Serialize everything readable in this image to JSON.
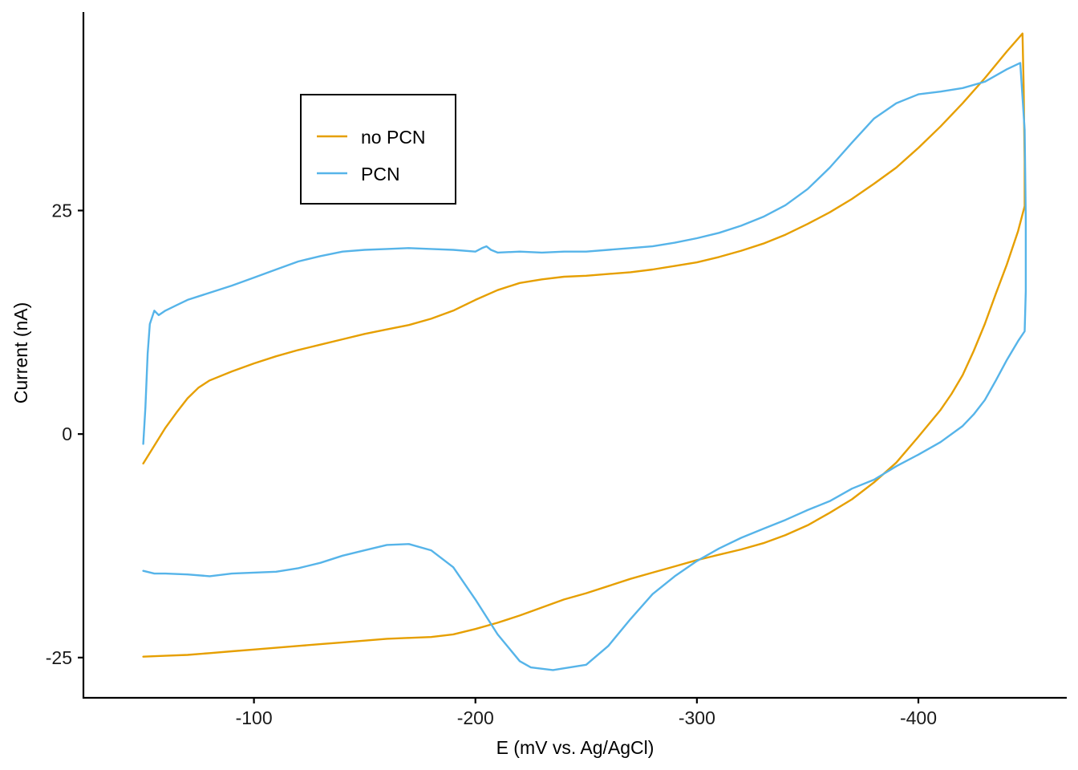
{
  "chart_data": {
    "type": "line",
    "title": "",
    "xlabel": "E (mV vs. Ag/AgCl)",
    "ylabel": "Current (nA)",
    "x_reversed": true,
    "xlim": [
      -23,
      -467
    ],
    "ylim": [
      -29.5,
      47.2
    ],
    "x_ticks": [
      -100,
      -200,
      -300,
      -400
    ],
    "y_ticks": [
      -25,
      0,
      25
    ],
    "grid": false,
    "legend_position": "top-left",
    "colors": {
      "no_pcn": "#E69F00",
      "pcn": "#56B4E9"
    },
    "series": [
      {
        "name": "no PCN",
        "color": "#E69F00",
        "points": [
          [
            -50,
            -3.3
          ],
          [
            -55,
            -1.3
          ],
          [
            -60,
            0.7
          ],
          [
            -65,
            2.4
          ],
          [
            -70,
            4.0
          ],
          [
            -75,
            5.2
          ],
          [
            -80,
            6.0
          ],
          [
            -90,
            7.0
          ],
          [
            -100,
            7.9
          ],
          [
            -110,
            8.7
          ],
          [
            -120,
            9.4
          ],
          [
            -130,
            10.0
          ],
          [
            -140,
            10.6
          ],
          [
            -150,
            11.2
          ],
          [
            -160,
            11.7
          ],
          [
            -170,
            12.2
          ],
          [
            -180,
            12.9
          ],
          [
            -190,
            13.8
          ],
          [
            -200,
            15.0
          ],
          [
            -210,
            16.1
          ],
          [
            -220,
            16.9
          ],
          [
            -230,
            17.3
          ],
          [
            -240,
            17.6
          ],
          [
            -250,
            17.7
          ],
          [
            -260,
            17.9
          ],
          [
            -270,
            18.1
          ],
          [
            -280,
            18.4
          ],
          [
            -290,
            18.8
          ],
          [
            -300,
            19.2
          ],
          [
            -310,
            19.8
          ],
          [
            -320,
            20.5
          ],
          [
            -330,
            21.3
          ],
          [
            -340,
            22.3
          ],
          [
            -350,
            23.5
          ],
          [
            -360,
            24.8
          ],
          [
            -370,
            26.3
          ],
          [
            -380,
            28.0
          ],
          [
            -390,
            29.8
          ],
          [
            -400,
            32.0
          ],
          [
            -410,
            34.4
          ],
          [
            -420,
            37.0
          ],
          [
            -430,
            39.8
          ],
          [
            -440,
            42.8
          ],
          [
            -447,
            44.8
          ],
          [
            -447.5,
            39.0
          ],
          [
            -448,
            30.5
          ],
          [
            -448,
            25.5
          ],
          [
            -445,
            22.7
          ],
          [
            -440,
            19.0
          ],
          [
            -435,
            15.7
          ],
          [
            -430,
            12.3
          ],
          [
            -425,
            9.3
          ],
          [
            -420,
            6.6
          ],
          [
            -415,
            4.5
          ],
          [
            -410,
            2.7
          ],
          [
            -400,
            -0.3
          ],
          [
            -390,
            -3.2
          ],
          [
            -380,
            -5.4
          ],
          [
            -370,
            -7.3
          ],
          [
            -360,
            -8.8
          ],
          [
            -350,
            -10.2
          ],
          [
            -340,
            -11.3
          ],
          [
            -330,
            -12.2
          ],
          [
            -320,
            -12.9
          ],
          [
            -310,
            -13.5
          ],
          [
            -300,
            -14.1
          ],
          [
            -290,
            -14.8
          ],
          [
            -280,
            -15.5
          ],
          [
            -270,
            -16.2
          ],
          [
            -260,
            -17.0
          ],
          [
            -250,
            -17.8
          ],
          [
            -240,
            -18.5
          ],
          [
            -230,
            -19.4
          ],
          [
            -220,
            -20.3
          ],
          [
            -210,
            -21.1
          ],
          [
            -200,
            -21.8
          ],
          [
            -190,
            -22.4
          ],
          [
            -180,
            -22.7
          ],
          [
            -170,
            -22.8
          ],
          [
            -160,
            -22.9
          ],
          [
            -150,
            -23.1
          ],
          [
            -140,
            -23.3
          ],
          [
            -130,
            -23.5
          ],
          [
            -120,
            -23.7
          ],
          [
            -110,
            -23.9
          ],
          [
            -100,
            -24.1
          ],
          [
            -90,
            -24.3
          ],
          [
            -80,
            -24.5
          ],
          [
            -70,
            -24.7
          ],
          [
            -60,
            -24.8
          ],
          [
            -50,
            -24.9
          ]
        ]
      },
      {
        "name": "PCN",
        "color": "#56B4E9",
        "points": [
          [
            -50,
            -1.1
          ],
          [
            -51,
            3.0
          ],
          [
            -52,
            9.0
          ],
          [
            -53,
            12.3
          ],
          [
            -55,
            13.8
          ],
          [
            -57,
            13.3
          ],
          [
            -60,
            13.8
          ],
          [
            -65,
            14.4
          ],
          [
            -70,
            15.0
          ],
          [
            -80,
            15.8
          ],
          [
            -90,
            16.6
          ],
          [
            -100,
            17.5
          ],
          [
            -110,
            18.4
          ],
          [
            -120,
            19.3
          ],
          [
            -130,
            19.9
          ],
          [
            -140,
            20.4
          ],
          [
            -150,
            20.6
          ],
          [
            -160,
            20.7
          ],
          [
            -170,
            20.8
          ],
          [
            -180,
            20.7
          ],
          [
            -190,
            20.6
          ],
          [
            -200,
            20.4
          ],
          [
            -203,
            20.8
          ],
          [
            -205,
            21.0
          ],
          [
            -207,
            20.6
          ],
          [
            -210,
            20.3
          ],
          [
            -220,
            20.4
          ],
          [
            -230,
            20.3
          ],
          [
            -240,
            20.4
          ],
          [
            -250,
            20.4
          ],
          [
            -260,
            20.6
          ],
          [
            -270,
            20.8
          ],
          [
            -280,
            21.0
          ],
          [
            -290,
            21.4
          ],
          [
            -300,
            21.9
          ],
          [
            -310,
            22.5
          ],
          [
            -320,
            23.3
          ],
          [
            -330,
            24.3
          ],
          [
            -340,
            25.6
          ],
          [
            -350,
            27.4
          ],
          [
            -360,
            29.8
          ],
          [
            -370,
            32.6
          ],
          [
            -380,
            35.3
          ],
          [
            -390,
            37.0
          ],
          [
            -400,
            38.0
          ],
          [
            -410,
            38.3
          ],
          [
            -420,
            38.7
          ],
          [
            -430,
            39.4
          ],
          [
            -440,
            40.8
          ],
          [
            -446,
            41.5
          ],
          [
            -448,
            34.0
          ],
          [
            -448.5,
            24.0
          ],
          [
            -448.5,
            16.0
          ],
          [
            -448,
            11.5
          ],
          [
            -445,
            10.4
          ],
          [
            -440,
            8.3
          ],
          [
            -435,
            6.0
          ],
          [
            -430,
            3.8
          ],
          [
            -425,
            2.2
          ],
          [
            -420,
            0.9
          ],
          [
            -410,
            -0.9
          ],
          [
            -400,
            -2.3
          ],
          [
            -390,
            -3.6
          ],
          [
            -380,
            -5.1
          ],
          [
            -370,
            -6.1
          ],
          [
            -360,
            -7.5
          ],
          [
            -350,
            -8.5
          ],
          [
            -340,
            -9.6
          ],
          [
            -330,
            -10.6
          ],
          [
            -320,
            -11.6
          ],
          [
            -310,
            -12.8
          ],
          [
            -300,
            -14.2
          ],
          [
            -290,
            -15.9
          ],
          [
            -280,
            -17.9
          ],
          [
            -270,
            -20.7
          ],
          [
            -260,
            -23.7
          ],
          [
            -250,
            -25.8
          ],
          [
            -240,
            -26.2
          ],
          [
            -235,
            -26.4
          ],
          [
            -225,
            -26.1
          ],
          [
            -220,
            -25.4
          ],
          [
            -210,
            -22.4
          ],
          [
            -200,
            -18.5
          ],
          [
            -190,
            -14.9
          ],
          [
            -180,
            -13.0
          ],
          [
            -170,
            -12.3
          ],
          [
            -160,
            -12.4
          ],
          [
            -150,
            -13.0
          ],
          [
            -140,
            -13.6
          ],
          [
            -130,
            -14.4
          ],
          [
            -120,
            -15.0
          ],
          [
            -110,
            -15.4
          ],
          [
            -100,
            -15.5
          ],
          [
            -90,
            -15.6
          ],
          [
            -80,
            -15.9
          ],
          [
            -70,
            -15.7
          ],
          [
            -60,
            -15.6
          ],
          [
            -55,
            -15.6
          ],
          [
            -50,
            -15.3
          ]
        ]
      }
    ]
  }
}
